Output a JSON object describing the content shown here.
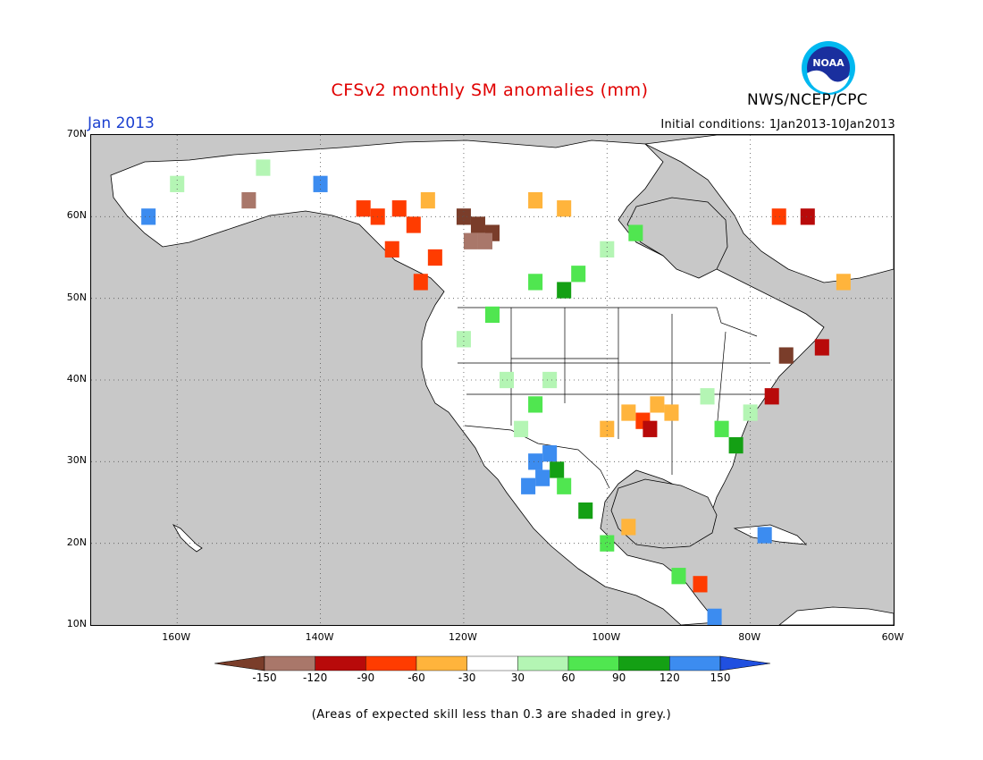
{
  "header": {
    "title": "CFSv2 monthly SM anomalies (mm)",
    "agency": "NWS/NCEP/CPC",
    "month": "Jan 2013",
    "initial_conditions": "Initial conditions: 1Jan2013-10Jan2013",
    "logo_text": "NOAA"
  },
  "map": {
    "lon_range": [
      -172,
      -60
    ],
    "lat_range": [
      10,
      70
    ],
    "lat_labels": [
      "70N",
      "60N",
      "50N",
      "40N",
      "30N",
      "20N",
      "10N"
    ],
    "lat_values": [
      70,
      60,
      50,
      40,
      30,
      20,
      10
    ],
    "lon_labels": [
      "160W",
      "140W",
      "120W",
      "100W",
      "80W",
      "60W"
    ],
    "lon_values": [
      -160,
      -140,
      -120,
      -100,
      -80,
      -60
    ],
    "gridlines": "dotted",
    "background_color": "#c8c8c8",
    "cells": [
      {
        "lon": -120,
        "lat": 60,
        "class": "brown"
      },
      {
        "lon": -118,
        "lat": 59,
        "class": "brown"
      },
      {
        "lon": -116,
        "lat": 58,
        "class": "brown"
      },
      {
        "lon": -119,
        "lat": 57,
        "class": "rose"
      },
      {
        "lon": -117,
        "lat": 57,
        "class": "rose"
      },
      {
        "lon": -134,
        "lat": 61,
        "class": "red"
      },
      {
        "lon": -132,
        "lat": 60,
        "class": "red"
      },
      {
        "lon": -129,
        "lat": 61,
        "class": "red"
      },
      {
        "lon": -127,
        "lat": 59,
        "class": "red"
      },
      {
        "lon": -130,
        "lat": 56,
        "class": "red"
      },
      {
        "lon": -124,
        "lat": 55,
        "class": "red"
      },
      {
        "lon": -126,
        "lat": 52,
        "class": "red"
      },
      {
        "lon": -125,
        "lat": 62,
        "class": "orange"
      },
      {
        "lon": -110,
        "lat": 62,
        "class": "orange"
      },
      {
        "lon": -106,
        "lat": 61,
        "class": "orange"
      },
      {
        "lon": -95,
        "lat": 35,
        "class": "red"
      },
      {
        "lon": -94,
        "lat": 34,
        "class": "darkred"
      },
      {
        "lon": -97,
        "lat": 36,
        "class": "orange"
      },
      {
        "lon": -93,
        "lat": 37,
        "class": "orange"
      },
      {
        "lon": -91,
        "lat": 36,
        "class": "orange"
      },
      {
        "lon": -100,
        "lat": 34,
        "class": "orange"
      },
      {
        "lon": -110,
        "lat": 30,
        "class": "blue"
      },
      {
        "lon": -109,
        "lat": 28,
        "class": "blue"
      },
      {
        "lon": -108,
        "lat": 31,
        "class": "blue"
      },
      {
        "lon": -111,
        "lat": 27,
        "class": "blue"
      },
      {
        "lon": -107,
        "lat": 29,
        "class": "darkgreen"
      },
      {
        "lon": -106,
        "lat": 27,
        "class": "green"
      },
      {
        "lon": -112,
        "lat": 34,
        "class": "lightgreen"
      },
      {
        "lon": -110,
        "lat": 37,
        "class": "green"
      },
      {
        "lon": -108,
        "lat": 40,
        "class": "lightgreen"
      },
      {
        "lon": -114,
        "lat": 40,
        "class": "lightgreen"
      },
      {
        "lon": -120,
        "lat": 45,
        "class": "lightgreen"
      },
      {
        "lon": -116,
        "lat": 48,
        "class": "green"
      },
      {
        "lon": -110,
        "lat": 52,
        "class": "green"
      },
      {
        "lon": -106,
        "lat": 51,
        "class": "darkgreen"
      },
      {
        "lon": -104,
        "lat": 53,
        "class": "green"
      },
      {
        "lon": -100,
        "lat": 56,
        "class": "lightgreen"
      },
      {
        "lon": -96,
        "lat": 58,
        "class": "green"
      },
      {
        "lon": -84,
        "lat": 34,
        "class": "green"
      },
      {
        "lon": -82,
        "lat": 32,
        "class": "darkgreen"
      },
      {
        "lon": -80,
        "lat": 36,
        "class": "lightgreen"
      },
      {
        "lon": -86,
        "lat": 38,
        "class": "lightgreen"
      },
      {
        "lon": -77,
        "lat": 38,
        "class": "darkred"
      },
      {
        "lon": -75,
        "lat": 43,
        "class": "brown"
      },
      {
        "lon": -70,
        "lat": 44,
        "class": "darkred"
      },
      {
        "lon": -72,
        "lat": 60,
        "class": "darkred"
      },
      {
        "lon": -76,
        "lat": 60,
        "class": "red"
      },
      {
        "lon": -67,
        "lat": 52,
        "class": "orange"
      },
      {
        "lon": -140,
        "lat": 64,
        "class": "blue"
      },
      {
        "lon": -148,
        "lat": 66,
        "class": "lightgreen"
      },
      {
        "lon": -160,
        "lat": 64,
        "class": "lightgreen"
      },
      {
        "lon": -164,
        "lat": 60,
        "class": "blue"
      },
      {
        "lon": -150,
        "lat": 62,
        "class": "rose"
      },
      {
        "lon": -87,
        "lat": 15,
        "class": "red"
      },
      {
        "lon": -90,
        "lat": 16,
        "class": "green"
      },
      {
        "lon": -85,
        "lat": 11,
        "class": "blue"
      },
      {
        "lon": -78,
        "lat": 21,
        "class": "blue"
      },
      {
        "lon": -100,
        "lat": 20,
        "class": "green"
      },
      {
        "lon": -97,
        "lat": 22,
        "class": "orange"
      },
      {
        "lon": -103,
        "lat": 24,
        "class": "darkgreen"
      }
    ]
  },
  "colorbar": {
    "colors": {
      "brown": "#7a3d2a",
      "rose": "#a9776a",
      "darkred": "#b80a0a",
      "red": "#ff3c00",
      "orange": "#ffb43c",
      "white": "#ffffff",
      "lightgreen": "#b4f5b4",
      "green": "#50e650",
      "darkgreen": "#14a014",
      "blue": "#3c8cf0",
      "arrowblue": "#2050e0"
    },
    "segments": [
      "brown",
      "rose",
      "darkred",
      "red",
      "orange",
      "white",
      "lightgreen",
      "green",
      "darkgreen",
      "blue",
      "arrowblue"
    ],
    "labels": [
      "-150",
      "-120",
      "-90",
      "-60",
      "-30",
      "30",
      "60",
      "90",
      "120",
      "150"
    ],
    "boundaries": [
      -150,
      -120,
      -90,
      -60,
      -30,
      30,
      60,
      90,
      120,
      150
    ]
  },
  "note": "(Areas of expected skill less than 0.3 are shaded in grey.)"
}
